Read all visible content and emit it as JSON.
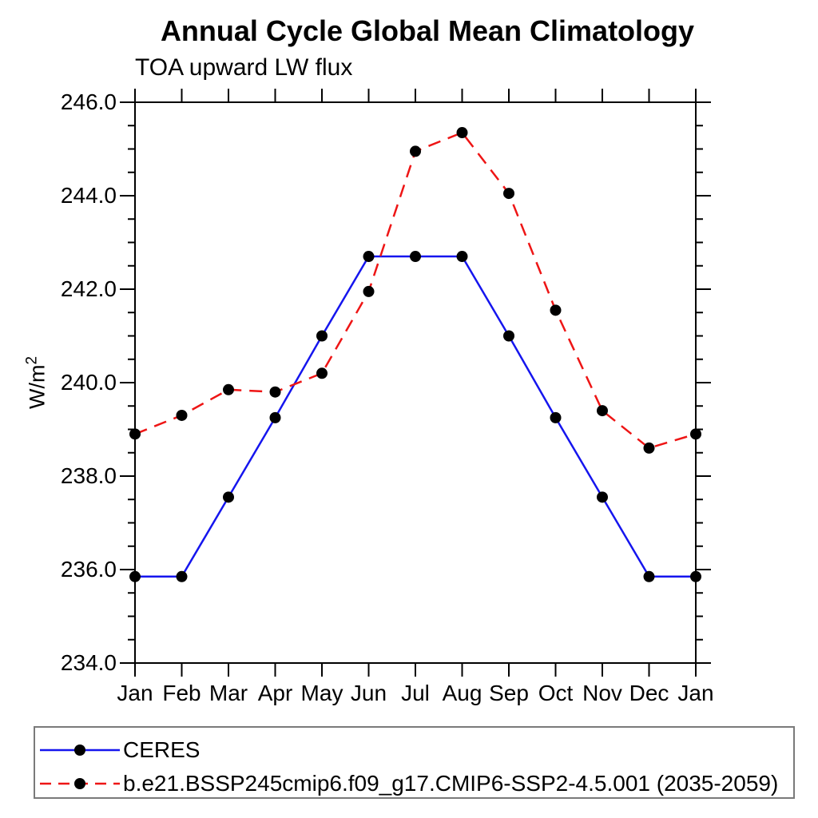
{
  "page": {
    "background": "#ffffff"
  },
  "chart_data": {
    "type": "line",
    "title": "Annual Cycle Global Mean Climatology",
    "subtitle": "TOA upward LW flux",
    "ylabel_base": "W/m",
    "ylabel_exponent": "2",
    "categories": [
      "Jan",
      "Feb",
      "Mar",
      "Apr",
      "May",
      "Jun",
      "Jul",
      "Aug",
      "Sep",
      "Oct",
      "Nov",
      "Dec",
      "Jan"
    ],
    "ylim": [
      234.0,
      246.0
    ],
    "ytick_interval_major": 2.0,
    "ytick_interval_minor": 0.5,
    "ytick_labels": [
      "234.0",
      "236.0",
      "238.0",
      "240.0",
      "242.0",
      "244.0",
      "246.0"
    ],
    "grid": false,
    "legend_position": "bottom-left",
    "axis_color": "#000000",
    "series": [
      {
        "name": "CERES",
        "line_color": "#1515ee",
        "line_style": "solid",
        "marker": "filled-circle",
        "marker_color": "#000000",
        "values": [
          235.85,
          235.85,
          237.55,
          239.25,
          241.0,
          242.7,
          242.7,
          242.7,
          241.0,
          239.25,
          237.55,
          235.85,
          235.85
        ]
      },
      {
        "name": "b.e21.BSSP245cmip6.f09_g17.CMIP6-SSP2-4.5.001 (2035-2059)",
        "line_color": "#ee1515",
        "line_style": "dashed",
        "marker": "filled-circle",
        "marker_color": "#000000",
        "values": [
          238.9,
          239.3,
          239.85,
          239.8,
          240.2,
          241.95,
          244.95,
          245.35,
          244.05,
          241.55,
          239.4,
          238.6,
          238.9
        ]
      }
    ]
  }
}
